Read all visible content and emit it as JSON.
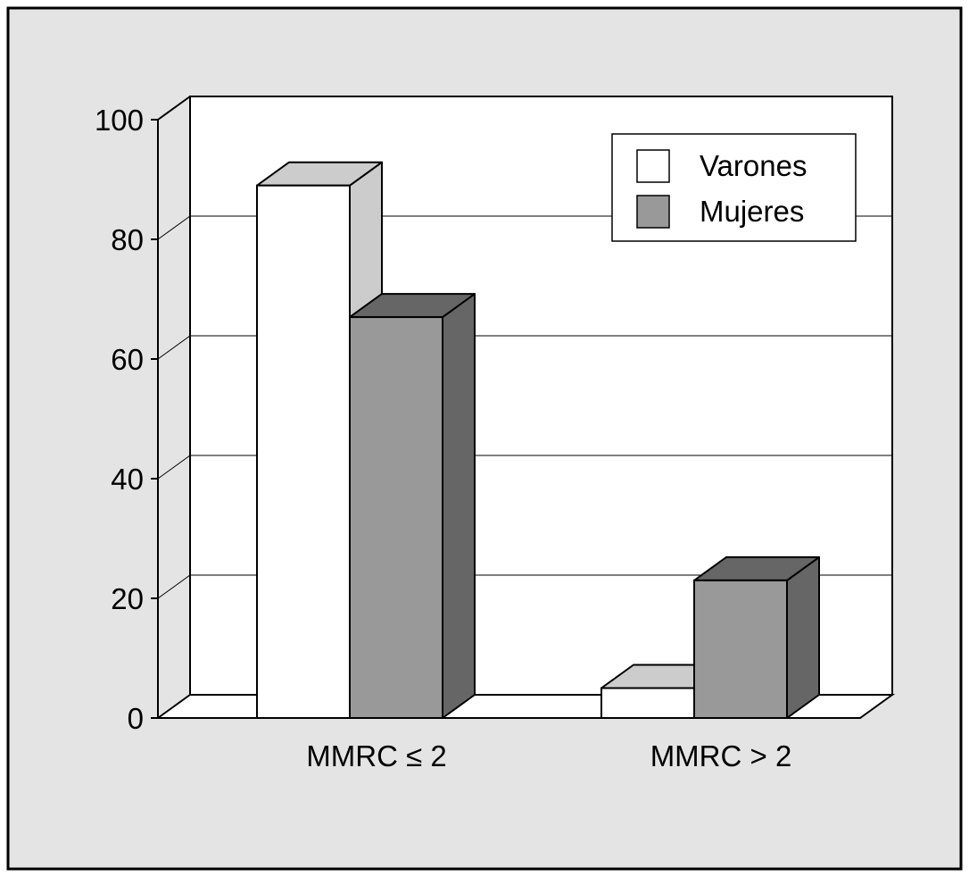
{
  "chart_data": {
    "type": "bar",
    "style": "3d-grouped",
    "title": "",
    "xlabel": "",
    "ylabel": "",
    "categories": [
      "MMRC ≤ 2",
      "MMRC > 2"
    ],
    "series": [
      {
        "name": "Varones",
        "values": [
          89,
          5
        ],
        "color": "#ffffff",
        "top_color": "#cccccc",
        "side_color": "#cccccc"
      },
      {
        "name": "Mujeres",
        "values": [
          67,
          23
        ],
        "color": "#999999",
        "top_color": "#666666",
        "side_color": "#666666"
      }
    ],
    "ylim": [
      0,
      100
    ],
    "y_ticks": [
      "0",
      "20",
      "40",
      "60",
      "80",
      "100"
    ],
    "grid": true,
    "legend_position": "top-right"
  },
  "colors": {
    "frame_background": "#e4e4e4",
    "plot_background": "#ffffff",
    "gridline": "#000000"
  }
}
